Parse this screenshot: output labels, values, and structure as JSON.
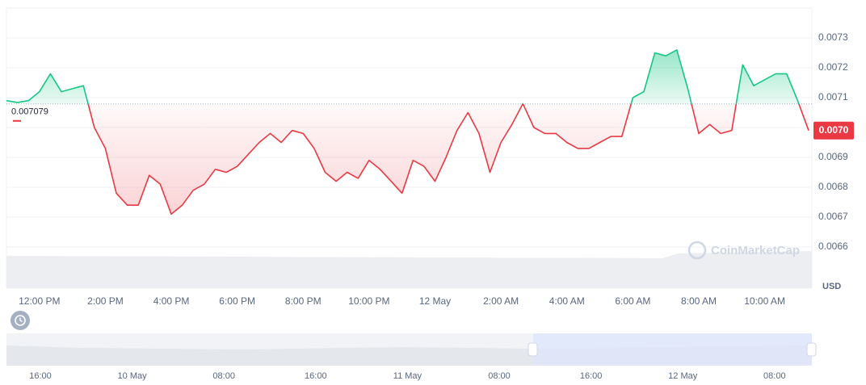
{
  "chart_data": {
    "type": "line",
    "categories": [
      null,
      null,
      null,
      "12:00 PM",
      null,
      null,
      null,
      null,
      null,
      "2:00 PM",
      null,
      null,
      null,
      null,
      null,
      "4:00 PM",
      null,
      null,
      null,
      null,
      null,
      "6:00 PM",
      null,
      null,
      null,
      null,
      null,
      "8:00 PM",
      null,
      null,
      null,
      null,
      null,
      "10:00 PM",
      null,
      null,
      null,
      null,
      null,
      "12 May",
      null,
      null,
      null,
      null,
      null,
      "2:00 AM",
      null,
      null,
      null,
      null,
      null,
      "4:00 AM",
      null,
      null,
      null,
      null,
      null,
      "6:00 AM",
      null,
      null,
      null,
      null,
      null,
      "8:00 AM",
      null,
      null,
      null,
      null,
      null,
      "10:00 AM",
      null,
      null,
      null,
      null
    ],
    "values": [
      0.00709,
      0.007084,
      0.00709,
      0.00712,
      0.00718,
      0.00712,
      0.00713,
      0.00714,
      0.007,
      0.00693,
      0.00678,
      0.00674,
      0.00674,
      0.00684,
      0.00681,
      0.00671,
      0.00674,
      0.00679,
      0.00681,
      0.00686,
      0.00685,
      0.00687,
      0.00691,
      0.00695,
      0.00698,
      0.00695,
      0.00699,
      0.00698,
      0.00693,
      0.00685,
      0.00682,
      0.00685,
      0.00683,
      0.00689,
      0.00686,
      0.00682,
      0.00678,
      0.00689,
      0.00687,
      0.00682,
      0.0069,
      0.00699,
      0.00705,
      0.00698,
      0.00685,
      0.00695,
      0.00701,
      0.00708,
      0.007,
      0.00698,
      0.00698,
      0.00695,
      0.00693,
      0.00693,
      0.00695,
      0.00697,
      0.00697,
      0.0071,
      0.00712,
      0.00725,
      0.00724,
      0.00726,
      0.00713,
      0.00698,
      0.00701,
      0.00698,
      0.00699,
      0.00721,
      0.00714,
      0.00716,
      0.00718,
      0.00718,
      0.00709,
      0.00699
    ],
    "baseline": 0.007079,
    "last_value_label": "0.0070",
    "up_color": "#16c784",
    "down_color": "#ea3943",
    "ylim": [
      0.0066,
      0.0074
    ],
    "yticks": [
      0.0066,
      0.0067,
      0.0068,
      0.0069,
      {
        "value": 0.007,
        "label": "0.0070"
      },
      0.0071,
      0.0072,
      0.0073
    ],
    "y_unit": "USD",
    "grid": true,
    "watermark": "CoinMarketCap",
    "navigator": {
      "labels": [
        "16:00",
        "10 May",
        "08:00",
        "16:00",
        "11 May",
        "08:00",
        "16:00",
        "12 May",
        "08:00"
      ]
    }
  }
}
